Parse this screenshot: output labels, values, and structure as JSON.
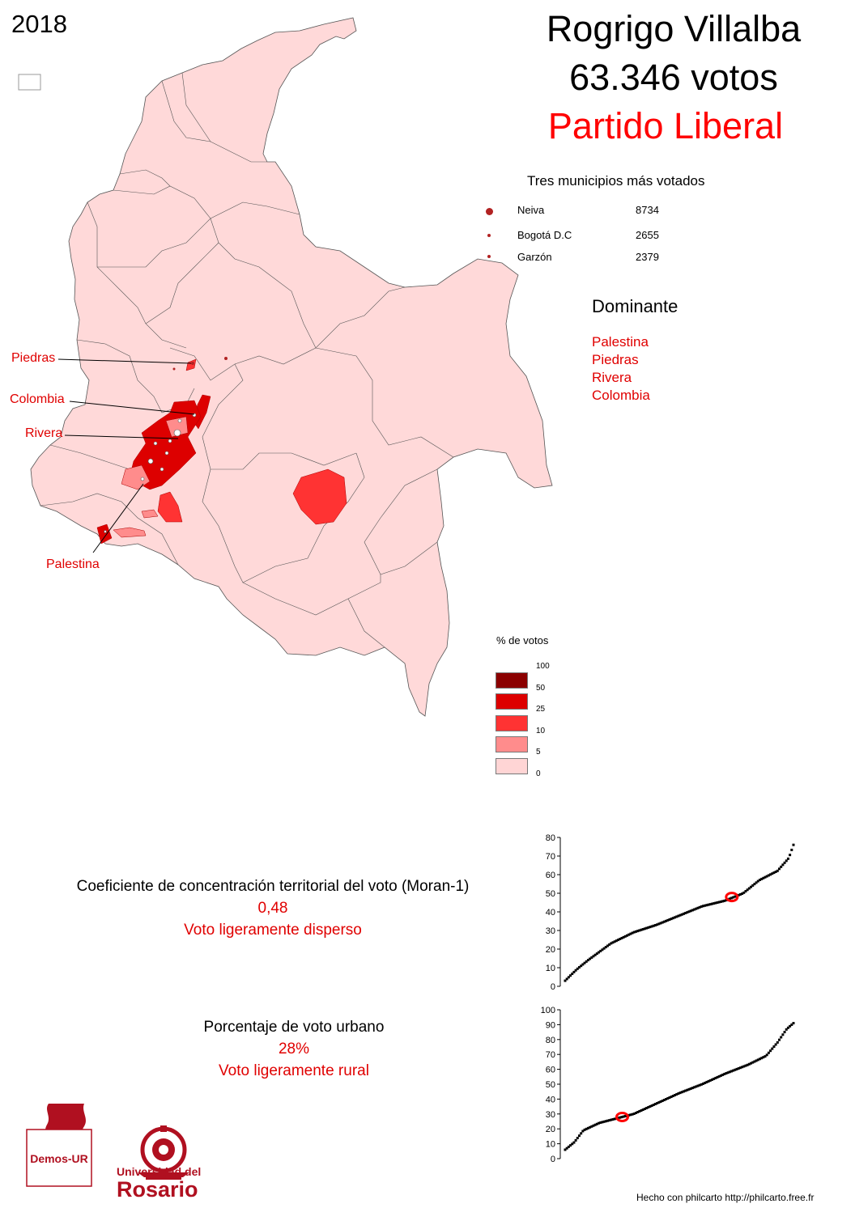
{
  "year": "2018",
  "candidate": {
    "name": "Rogrigo Villalba",
    "votes": "63.346 votos",
    "party": "Partido Liberal"
  },
  "top_municipalities": {
    "title": "Tres municipios más votados",
    "items": [
      {
        "name": "Neiva",
        "value": "8734"
      },
      {
        "name": "Bogotá D.C",
        "value": "2655"
      },
      {
        "name": "Garzón",
        "value": "2379"
      }
    ]
  },
  "dominant": {
    "title": "Dominante",
    "items": [
      "Palestina",
      "Piedras",
      "Rivera",
      "Colombia"
    ]
  },
  "map_labels": [
    "Piedras",
    "Colombia",
    "Rivera",
    "Palestina"
  ],
  "legend": {
    "title": "% de votos",
    "breaks": [
      "100",
      "50",
      "25",
      "10",
      "5",
      "0"
    ],
    "colors": [
      "#8b0000",
      "#dd0000",
      "#ff3333",
      "#ff8c8c",
      "#ffd5d5"
    ]
  },
  "moran": {
    "title": "Coeficiente de concentración territorial del voto (Moran-1)",
    "value": "0,48",
    "description": "Voto ligeramente disperso"
  },
  "urban": {
    "title": "Porcentaje de voto urbano",
    "value": "28%",
    "description": "Voto ligeramente rural"
  },
  "chart_data": [
    {
      "type": "scatter",
      "title": "",
      "xlabel": "",
      "ylabel": "",
      "yticks": [
        "0",
        "10",
        "20",
        "30",
        "40",
        "50",
        "60",
        "70",
        "80"
      ],
      "ylim": [
        0,
        80
      ],
      "highlight": {
        "x": 0.73,
        "y": 48
      },
      "curve": [
        [
          0,
          3
        ],
        [
          0.05,
          9
        ],
        [
          0.1,
          14
        ],
        [
          0.2,
          23
        ],
        [
          0.3,
          29
        ],
        [
          0.4,
          33
        ],
        [
          0.5,
          38
        ],
        [
          0.6,
          43
        ],
        [
          0.7,
          46
        ],
        [
          0.78,
          50
        ],
        [
          0.85,
          57
        ],
        [
          0.93,
          62
        ],
        [
          0.98,
          69
        ],
        [
          1.0,
          76
        ]
      ]
    },
    {
      "type": "scatter",
      "title": "",
      "xlabel": "",
      "ylabel": "",
      "yticks": [
        "0",
        "10",
        "20",
        "30",
        "40",
        "50",
        "60",
        "70",
        "80",
        "90",
        "100"
      ],
      "ylim": [
        0,
        100
      ],
      "highlight": {
        "x": 0.25,
        "y": 28
      },
      "curve": [
        [
          0,
          6
        ],
        [
          0.04,
          11
        ],
        [
          0.08,
          19
        ],
        [
          0.15,
          24
        ],
        [
          0.3,
          30
        ],
        [
          0.4,
          37
        ],
        [
          0.5,
          44
        ],
        [
          0.6,
          50
        ],
        [
          0.7,
          57
        ],
        [
          0.8,
          63
        ],
        [
          0.88,
          69
        ],
        [
          0.93,
          78
        ],
        [
          0.97,
          87
        ],
        [
          1.0,
          91
        ]
      ]
    }
  ],
  "logos": {
    "demos": "Demos-UR",
    "rosario_line1": "Universidad del",
    "rosario_line2": "Rosario"
  },
  "footer": "Hecho con philcarto  http://philcarto.free.fr"
}
